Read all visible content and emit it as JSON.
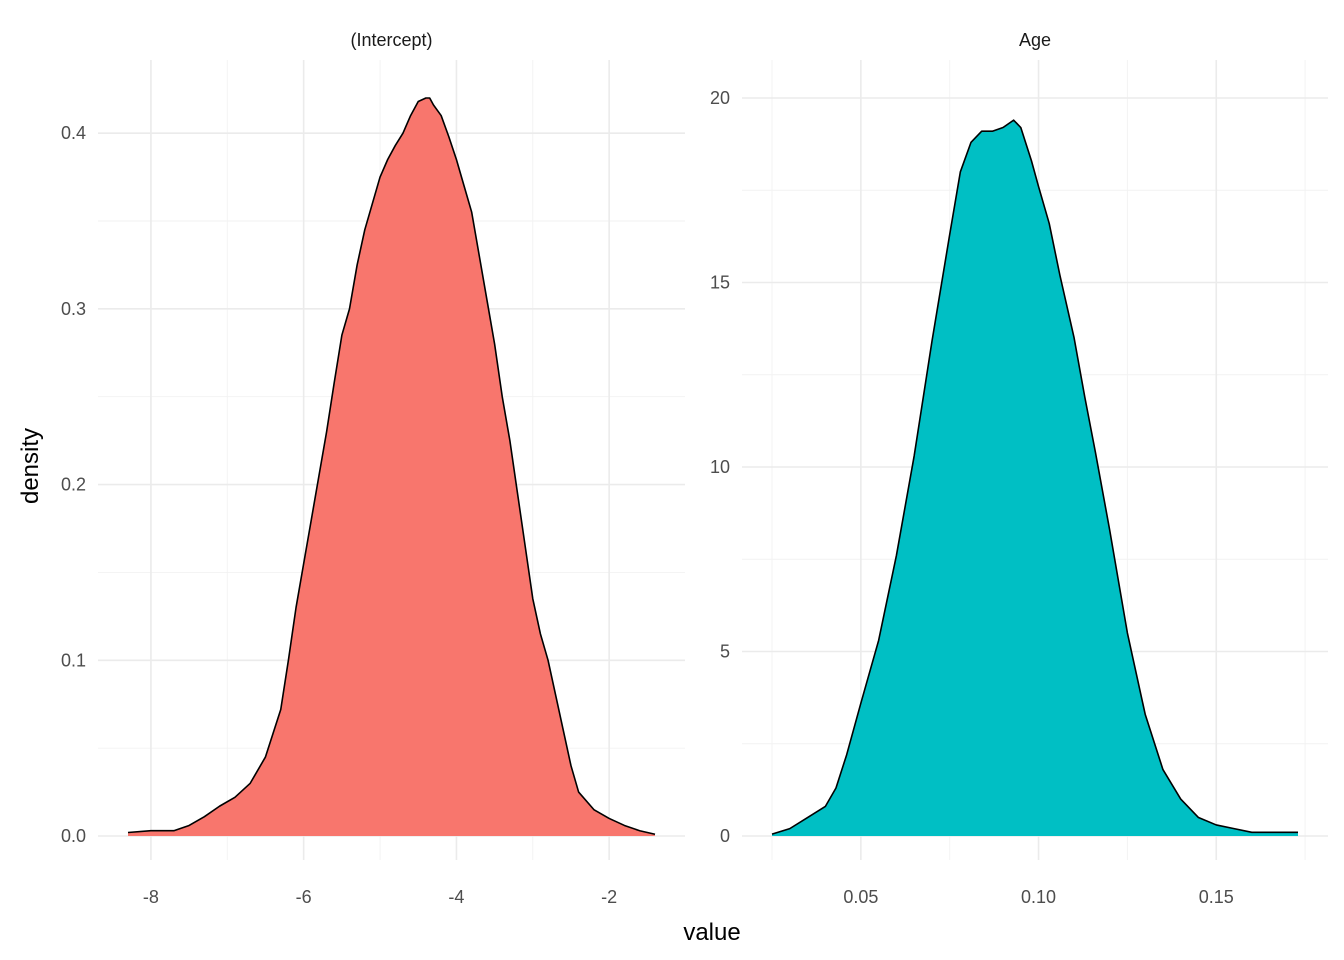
{
  "chart_data": {
    "type": "area",
    "xlabel": "value",
    "ylabel": "density",
    "grid": true,
    "legend": "none",
    "panels": [
      {
        "name": "(Intercept)",
        "color": "#F8766D",
        "xlim": [
          -8.3,
          -1.4
        ],
        "ylim": [
          0,
          0.42
        ],
        "x_ticks": [
          -8,
          -6,
          -4,
          -2
        ],
        "x_tick_labels": [
          "-8",
          "-6",
          "-4",
          "-2"
        ],
        "y_ticks": [
          0.0,
          0.1,
          0.2,
          0.3,
          0.4
        ],
        "y_tick_labels": [
          "0.0",
          "0.1",
          "0.2",
          "0.3",
          "0.4"
        ],
        "x": [
          -8.3,
          -8.0,
          -7.7,
          -7.5,
          -7.3,
          -7.1,
          -6.9,
          -6.7,
          -6.5,
          -6.3,
          -6.2,
          -6.1,
          -6.0,
          -5.9,
          -5.8,
          -5.7,
          -5.6,
          -5.5,
          -5.4,
          -5.3,
          -5.2,
          -5.1,
          -5.0,
          -4.9,
          -4.8,
          -4.7,
          -4.6,
          -4.5,
          -4.4,
          -4.35,
          -4.3,
          -4.2,
          -4.1,
          -4.0,
          -3.9,
          -3.8,
          -3.7,
          -3.6,
          -3.5,
          -3.4,
          -3.3,
          -3.2,
          -3.1,
          -3.0,
          -2.9,
          -2.8,
          -2.7,
          -2.6,
          -2.5,
          -2.4,
          -2.2,
          -2.0,
          -1.8,
          -1.6,
          -1.4
        ],
        "y": [
          0.002,
          0.003,
          0.003,
          0.006,
          0.011,
          0.017,
          0.022,
          0.03,
          0.045,
          0.072,
          0.1,
          0.13,
          0.155,
          0.18,
          0.205,
          0.23,
          0.258,
          0.285,
          0.3,
          0.325,
          0.345,
          0.36,
          0.375,
          0.385,
          0.393,
          0.4,
          0.41,
          0.418,
          0.42,
          0.42,
          0.416,
          0.41,
          0.398,
          0.385,
          0.37,
          0.355,
          0.33,
          0.305,
          0.28,
          0.25,
          0.225,
          0.195,
          0.165,
          0.135,
          0.115,
          0.1,
          0.08,
          0.06,
          0.04,
          0.025,
          0.015,
          0.01,
          0.006,
          0.003,
          0.001
        ]
      },
      {
        "name": "Age",
        "color": "#00BFC4",
        "xlim": [
          0.025,
          0.173
        ],
        "ylim": [
          0,
          20
        ],
        "x_ticks": [
          0.05,
          0.1,
          0.15
        ],
        "x_tick_labels": [
          "0.05",
          "0.10",
          "0.15"
        ],
        "y_ticks": [
          0,
          5,
          10,
          15,
          20
        ],
        "y_tick_labels": [
          "0",
          "5",
          "10",
          "15",
          "20"
        ],
        "x": [
          0.025,
          0.03,
          0.035,
          0.04,
          0.043,
          0.046,
          0.05,
          0.055,
          0.06,
          0.065,
          0.07,
          0.075,
          0.078,
          0.081,
          0.084,
          0.087,
          0.09,
          0.093,
          0.095,
          0.098,
          0.1,
          0.103,
          0.106,
          0.11,
          0.113,
          0.116,
          0.12,
          0.125,
          0.13,
          0.135,
          0.14,
          0.145,
          0.15,
          0.155,
          0.16,
          0.165,
          0.17,
          0.173
        ],
        "y": [
          0.05,
          0.2,
          0.5,
          0.8,
          1.3,
          2.2,
          3.6,
          5.3,
          7.6,
          10.3,
          13.4,
          16.3,
          18.0,
          18.8,
          19.1,
          19.1,
          19.2,
          19.4,
          19.2,
          18.3,
          17.6,
          16.6,
          15.2,
          13.5,
          11.9,
          10.4,
          8.3,
          5.5,
          3.3,
          1.8,
          1.0,
          0.5,
          0.3,
          0.2,
          0.1,
          0.1,
          0.1,
          0.1
        ]
      }
    ]
  }
}
